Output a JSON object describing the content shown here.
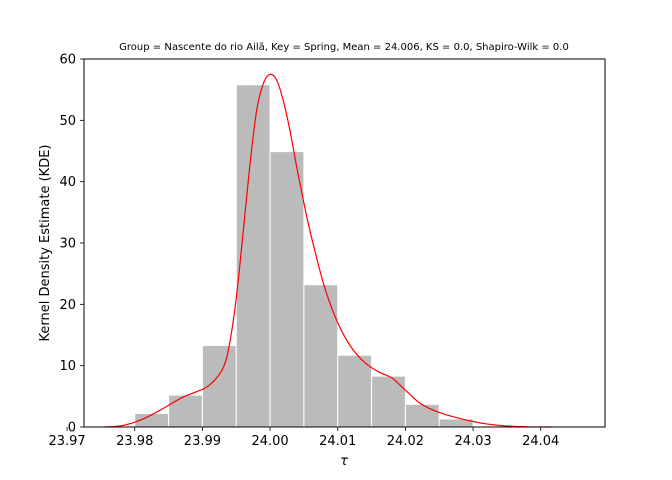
{
  "chart_data": {
    "type": "bar",
    "title": "Group = Nascente do rio Ailã, Key = Spring, Mean = 24.006, KS = 0.0, Shapiro-Wilk = 0.0",
    "xlabel": "τ",
    "ylabel": "Kernel Density Estimate (KDE)",
    "xlim": [
      23.9725,
      24.0495
    ],
    "ylim": [
      0,
      60
    ],
    "x_ticks": [
      "23.97",
      "23.98",
      "23.99",
      "24.00",
      "24.01",
      "24.02",
      "24.03",
      "24.04"
    ],
    "x_tick_values": [
      23.97,
      23.98,
      23.99,
      24.0,
      24.01,
      24.02,
      24.03,
      24.04
    ],
    "y_ticks": [
      "0",
      "10",
      "20",
      "30",
      "40",
      "50",
      "60"
    ],
    "y_tick_values": [
      0,
      10,
      20,
      30,
      40,
      50,
      60
    ],
    "histogram": {
      "bin_edges": [
        23.98,
        23.99,
        24.0,
        24.01,
        24.02,
        24.03,
        24.04
      ],
      "bins": [
        {
          "x0": 23.98,
          "x1": 23.985,
          "value": 2.2
        },
        {
          "x0": 23.985,
          "x1": 23.99,
          "value": 5.2
        },
        {
          "x0": 23.99,
          "x1": 23.995,
          "value": 13.3
        },
        {
          "x0": 23.995,
          "x1": 24.0,
          "value": 55.8
        },
        {
          "x0": 24.0,
          "x1": 24.005,
          "value": 44.9
        },
        {
          "x0": 24.005,
          "x1": 24.01,
          "value": 23.2
        },
        {
          "x0": 24.01,
          "x1": 24.015,
          "value": 11.7
        },
        {
          "x0": 24.015,
          "x1": 24.02,
          "value": 8.3
        },
        {
          "x0": 24.02,
          "x1": 24.025,
          "value": 3.7
        },
        {
          "x0": 24.025,
          "x1": 24.03,
          "value": 1.3
        }
      ],
      "color": "#bbbbbb"
    },
    "kde": {
      "color": "#ff0000",
      "x": [
        23.9755,
        23.978,
        23.981,
        23.984,
        23.987,
        23.989,
        23.991,
        23.993,
        23.994,
        23.995,
        23.996,
        23.997,
        23.998,
        23.999,
        24.0,
        24.001,
        24.002,
        24.003,
        24.004,
        24.005,
        24.006,
        24.008,
        24.01,
        24.012,
        24.014,
        24.016,
        24.018,
        24.02,
        24.022,
        24.024,
        24.026,
        24.028,
        24.03,
        24.032,
        24.035,
        24.038,
        24.0415
      ],
      "y": [
        0.0,
        0.2,
        1.2,
        2.9,
        4.8,
        5.7,
        6.8,
        9.5,
        13.5,
        21.0,
        31.5,
        42.5,
        51.5,
        56.0,
        57.5,
        56.5,
        53.0,
        48.0,
        42.0,
        36.5,
        31.5,
        23.0,
        17.0,
        13.0,
        10.5,
        9.0,
        8.0,
        6.0,
        4.0,
        2.8,
        2.0,
        1.4,
        0.9,
        0.5,
        0.15,
        0.03,
        0.0
      ]
    },
    "grid": false,
    "legend": "none"
  }
}
